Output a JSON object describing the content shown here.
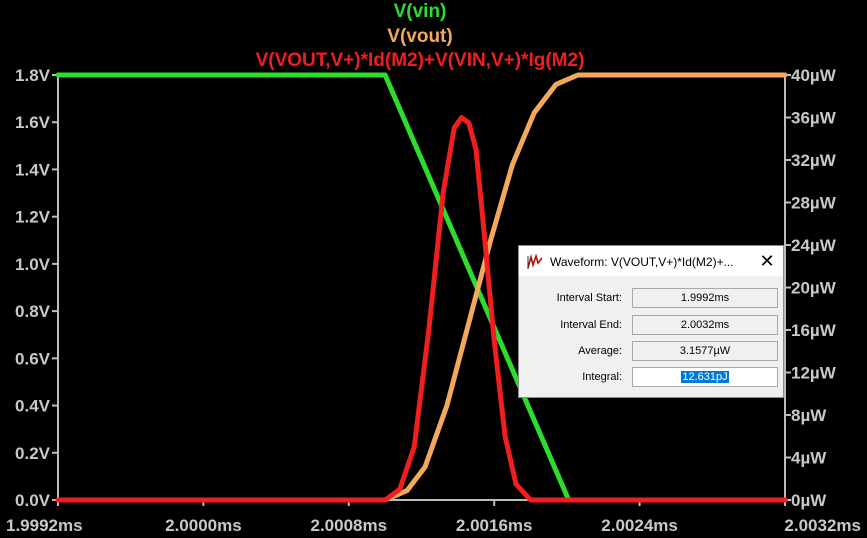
{
  "plot": {
    "traces": [
      {
        "name": "V(vin)",
        "color": "#2ddc2d"
      },
      {
        "name": "V(vout)",
        "color": "#f4a85a"
      },
      {
        "name": "V(VOUT,V+)*Id(M2)+V(VIN,V+)*Ig(M2)",
        "color": "#f01e1e"
      }
    ],
    "y_left_ticks": [
      "1.8V",
      "1.6V",
      "1.4V",
      "1.2V",
      "1.0V",
      "0.8V",
      "0.6V",
      "0.4V",
      "0.2V",
      "0.0V"
    ],
    "y_right_ticks": [
      "40µW",
      "36µW",
      "32µW",
      "28µW",
      "24µW",
      "20µW",
      "16µW",
      "12µW",
      "8µW",
      "4µW",
      "0µW"
    ],
    "x_ticks": [
      "1.9992ms",
      "2.0000ms",
      "2.0008ms",
      "2.0016ms",
      "2.0024ms",
      "2.0032ms"
    ],
    "colors": {
      "background": "#000000",
      "axis": "#bdbdbd",
      "tick_text": "#c8c8c8"
    }
  },
  "chart_data": {
    "type": "line",
    "xlabel": "",
    "x_unit": "ms",
    "xlim": [
      1.9992,
      2.0032
    ],
    "y_left": {
      "unit": "V",
      "ylim": [
        0,
        1.8
      ]
    },
    "y_right": {
      "unit": "µW",
      "ylim": [
        0,
        40
      ]
    },
    "grid": false,
    "series": [
      {
        "name": "V(vin)",
        "axis": "left",
        "color": "#2ddc2d",
        "x": [
          1.9992,
          2.001,
          2.00201,
          2.0032
        ],
        "values": [
          1.8,
          1.8,
          0.0,
          0.0
        ]
      },
      {
        "name": "V(vout)",
        "axis": "left",
        "color": "#f4a85a",
        "x": [
          1.9992,
          2.001,
          2.00112,
          2.00122,
          2.00134,
          2.00146,
          2.00158,
          2.0017,
          2.00182,
          2.00194,
          2.00206,
          2.00222,
          2.0032
        ],
        "values": [
          0.0,
          0.0,
          0.04,
          0.14,
          0.4,
          0.75,
          1.1,
          1.42,
          1.64,
          1.76,
          1.8,
          1.8,
          1.8
        ]
      },
      {
        "name": "V(VOUT,V+)*Id(M2)+V(VIN,V+)*Ig(M2)",
        "axis": "right",
        "color": "#f01e1e",
        "x": [
          1.9992,
          2.001,
          2.00108,
          2.00116,
          2.00124,
          2.00132,
          2.00138,
          2.00142,
          2.00146,
          2.0015,
          2.00154,
          2.0016,
          2.00166,
          2.00172,
          2.0018,
          2.00186,
          2.0032
        ],
        "values": [
          0,
          0,
          1,
          5,
          16,
          29,
          35,
          36,
          35.5,
          33,
          26,
          15,
          6,
          1.5,
          0,
          0,
          0
        ]
      }
    ]
  },
  "dialog": {
    "title": "Waveform: V(VOUT,V+)*Id(M2)+...",
    "close_glyph": "✕",
    "icon": "waveform-icon",
    "rows": [
      {
        "label": "Interval Start:",
        "value": "1.9992ms"
      },
      {
        "label": "Interval End:",
        "value": "2.0032ms"
      },
      {
        "label": "Average:",
        "value": "3.1577µW"
      },
      {
        "label": "Integral:",
        "value": "12.631pJ"
      }
    ]
  }
}
